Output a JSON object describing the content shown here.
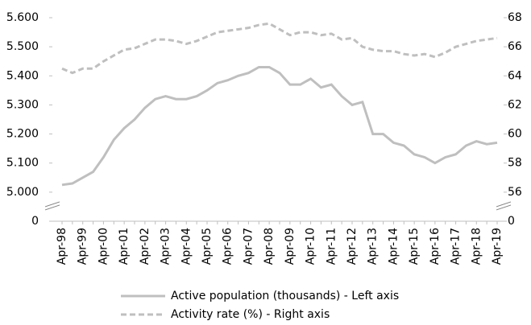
{
  "chart_data": {
    "type": "line",
    "categories": [
      "Apr-98",
      null,
      "Apr-99",
      null,
      "Apr-00",
      null,
      "Apr-01",
      null,
      "Apr-02",
      null,
      "Apr-03",
      null,
      "Apr-04",
      null,
      "Apr-05",
      null,
      "Apr-06",
      null,
      "Apr-07",
      null,
      "Apr-08",
      null,
      "Apr-09",
      null,
      "Apr-10",
      null,
      "Apr-11",
      null,
      "Apr-12",
      null,
      "Apr-13",
      null,
      "Apr-14",
      null,
      "Apr-15",
      null,
      "Apr-16",
      null,
      "Apr-17",
      null,
      "Apr-18",
      null,
      "Apr-19"
    ],
    "series": [
      {
        "name": "Active population (thousands) - Left axis",
        "color": "#bfbfbf",
        "dash": "solid",
        "values": [
          5025,
          5030,
          5050,
          5070,
          5120,
          5180,
          5220,
          5250,
          5290,
          5320,
          5330,
          5320,
          5320,
          5330,
          5350,
          5375,
          5385,
          5400,
          5410,
          5430,
          5430,
          5410,
          5370,
          5370,
          5390,
          5360,
          5370,
          5330,
          5300,
          5310,
          5200,
          5200,
          5170,
          5160,
          5130,
          5120,
          5100,
          5120,
          5130,
          5160,
          5175,
          5165,
          5170
        ]
      },
      {
        "name": "Activity rate (%) - Right axis",
        "color": "#bfbfbf",
        "dash": "dashed",
        "axis": "y2",
        "values": [
          64.5,
          64.2,
          64.5,
          64.5,
          65.0,
          65.4,
          65.8,
          65.9,
          66.2,
          66.5,
          66.5,
          66.4,
          66.2,
          66.4,
          66.7,
          67.0,
          67.1,
          67.2,
          67.3,
          67.5,
          67.6,
          67.2,
          66.8,
          67.0,
          67.0,
          66.8,
          66.9,
          66.5,
          66.6,
          66.0,
          65.8,
          65.7,
          65.7,
          65.5,
          65.4,
          65.5,
          65.3,
          65.6,
          66.0,
          66.2,
          66.4,
          66.5,
          66.6
        ]
      }
    ],
    "ylim": [
      0,
      5600
    ],
    "ybreak": [
      0,
      5000
    ],
    "yticks": [
      0,
      {
        "value": 5000,
        "label": "5.000"
      },
      {
        "value": 5100,
        "label": "5.100"
      },
      {
        "value": 5200,
        "label": "5.200"
      },
      {
        "value": 5300,
        "label": "5.300"
      },
      {
        "value": 5400,
        "label": "5.400"
      },
      {
        "value": 5500,
        "label": "5.500"
      },
      {
        "value": 5600,
        "label": "5.600"
      }
    ],
    "y2lim": [
      0,
      68
    ],
    "y2break": [
      0,
      56
    ],
    "y2ticks": [
      0,
      56,
      58,
      60,
      62,
      64,
      66,
      68
    ],
    "legend": "bottom",
    "grid": false
  }
}
